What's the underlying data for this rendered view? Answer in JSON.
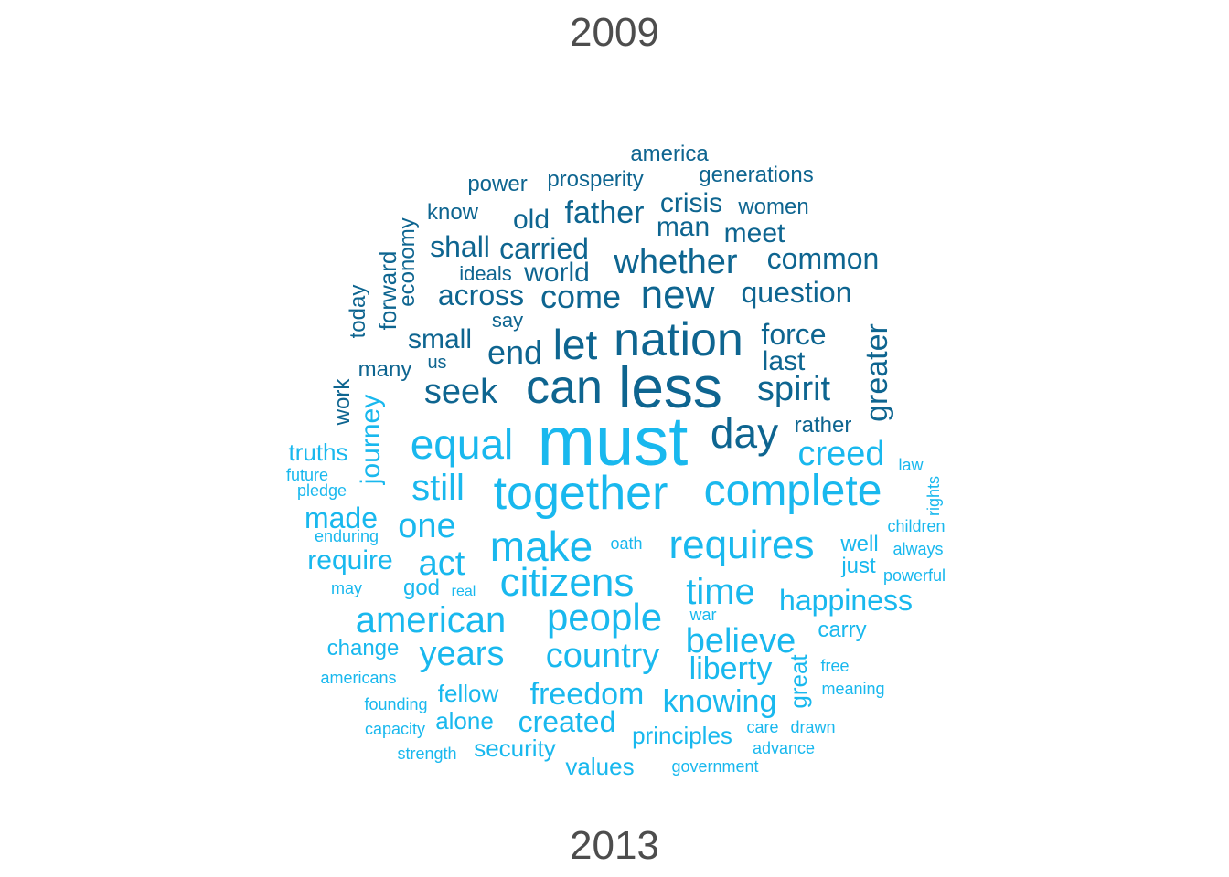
{
  "labels": {
    "top": "2009",
    "bottom": "2013"
  },
  "colors": {
    "group_2009": "#0e6590",
    "group_2013": "#19b8ee",
    "label": "#4d4d4d"
  },
  "words_2009": [
    "nation",
    "less",
    "can",
    "let",
    "end",
    "seek",
    "new",
    "come",
    "whether",
    "spirit",
    "force",
    "last",
    "greater",
    "day",
    "question",
    "common",
    "meet",
    "man",
    "crisis",
    "father",
    "old",
    "carried",
    "shall",
    "world",
    "across",
    "ideals",
    "know",
    "economy",
    "forward",
    "today",
    "small",
    "say",
    "us",
    "many",
    "work",
    "power",
    "prosperity",
    "america",
    "generations",
    "women",
    "rather"
  ],
  "words_2013": [
    "must",
    "together",
    "complete",
    "equal",
    "make",
    "requires",
    "citizens",
    "people",
    "american",
    "believe",
    "time",
    "creed",
    "still",
    "one",
    "act",
    "made",
    "require",
    "years",
    "country",
    "liberty",
    "knowing",
    "freedom",
    "happiness",
    "journey",
    "truths",
    "future",
    "pledge",
    "enduring",
    "god",
    "may",
    "real",
    "oath",
    "well",
    "just",
    "children",
    "always",
    "powerful",
    "law",
    "rights",
    "war",
    "carry",
    "change",
    "americans",
    "founding",
    "capacity",
    "strength",
    "fellow",
    "alone",
    "created",
    "security",
    "values",
    "principles",
    "government",
    "care",
    "advance",
    "drawn",
    "free",
    "meaning",
    "great"
  ]
}
